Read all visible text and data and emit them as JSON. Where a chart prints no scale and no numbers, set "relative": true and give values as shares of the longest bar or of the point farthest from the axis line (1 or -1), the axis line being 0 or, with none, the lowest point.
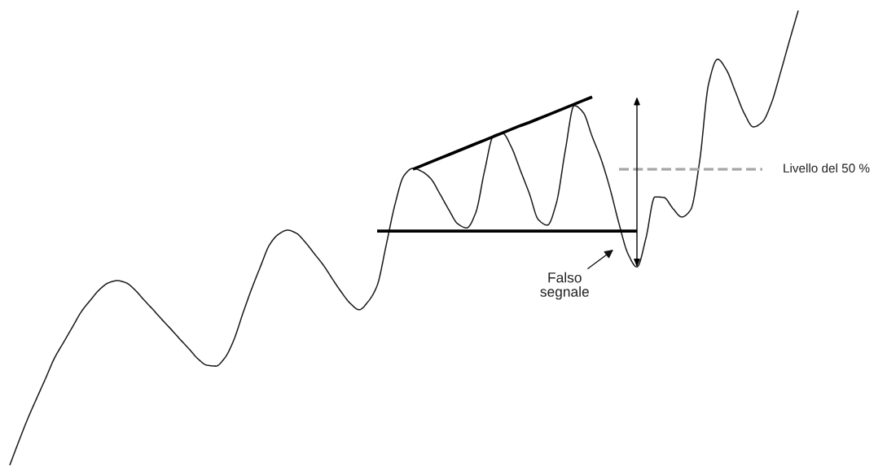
{
  "chart_data": {
    "type": "line",
    "relative": true,
    "tick_labels": false,
    "categories": [
      null,
      null,
      null,
      null,
      null,
      null,
      null,
      null,
      null,
      null,
      null,
      null,
      null,
      null,
      null,
      null,
      null,
      null,
      null,
      null,
      null,
      null,
      null,
      null,
      null,
      null,
      null,
      null,
      null,
      null,
      null,
      null,
      null,
      null,
      null,
      null,
      null,
      null,
      null,
      null,
      null,
      null,
      null,
      null,
      null,
      null,
      null,
      null,
      null,
      null,
      null,
      null,
      null,
      null,
      null,
      null,
      null,
      null,
      null,
      null,
      null,
      null,
      null,
      null,
      null,
      null,
      null,
      null,
      null,
      null,
      null,
      null,
      null,
      null,
      null,
      null,
      null,
      null,
      null,
      null,
      null,
      null,
      null,
      null,
      null,
      null,
      null,
      null,
      null
    ],
    "series": [
      {
        "color": "#1a1a1a",
        "values": [
          0,
          0.052,
          0.102,
          0.147,
          0.191,
          0.236,
          0.27,
          0.304,
          0.338,
          0.363,
          0.386,
          0.401,
          0.406,
          0.401,
          0.385,
          0.363,
          0.342,
          0.32,
          0.299,
          0.277,
          0.256,
          0.234,
          0.22,
          0.218,
          0.236,
          0.275,
          0.333,
          0.388,
          0.438,
          0.485,
          0.508,
          0.517,
          0.51,
          0.49,
          0.465,
          0.44,
          0.41,
          0.381,
          0.356,
          0.342,
          0.36,
          0.395,
          0.483,
          0.574,
          0.637,
          0.653,
          0.646,
          0.63,
          0.597,
          0.562,
          0.531,
          0.522,
          0.555,
          0.648,
          0.725,
          0.73,
          0.699,
          0.648,
          0.597,
          0.54,
          0.528,
          0.576,
          0.692,
          0.791,
          0.776,
          0.723,
          0.673,
          0.608,
          0.531,
          0.465,
          0.436,
          0.499,
          0.59,
          0.589,
          0.565,
          0.546,
          0.562,
          0.669,
          0.839,
          0.893,
          0.869,
          0.821,
          0.773,
          0.744,
          0.755,
          0.796,
          0.862,
          0.932,
          1.0
        ]
      },
      {
        "type": "line",
        "color": "#000000",
        "values": [
          null,
          null,
          null,
          null,
          null,
          null,
          null,
          null,
          null,
          null,
          null,
          null,
          null,
          null,
          null,
          null,
          null,
          null,
          null,
          null,
          null,
          null,
          null,
          null,
          null,
          null,
          null,
          null,
          null,
          null,
          null,
          null,
          null,
          null,
          null,
          null,
          null,
          null,
          null,
          null,
          null,
          0.515,
          0.515,
          0.515,
          0.515,
          0.515,
          0.515,
          0.515,
          0.515,
          0.515,
          0.515,
          0.515,
          0.515,
          0.515,
          0.515,
          0.515,
          0.515,
          0.515,
          0.515,
          0.515,
          0.515,
          0.515,
          0.515,
          0.515,
          0.515,
          0.515,
          0.515,
          0.515,
          0.515,
          0.515,
          0.515,
          null,
          null,
          null,
          null,
          null,
          null,
          null,
          null,
          null,
          null,
          null,
          null,
          null,
          null,
          null,
          null,
          null,
          null
        ]
      },
      {
        "type": "line",
        "color": "#000000",
        "values": [
          null,
          null,
          null,
          null,
          null,
          null,
          null,
          null,
          null,
          null,
          null,
          null,
          null,
          null,
          null,
          null,
          null,
          null,
          null,
          null,
          null,
          null,
          null,
          null,
          null,
          null,
          null,
          null,
          null,
          null,
          null,
          null,
          null,
          null,
          null,
          null,
          null,
          null,
          null,
          null,
          null,
          null,
          null,
          null,
          null,
          0.651,
          0.659,
          0.667,
          0.675,
          0.683,
          0.691,
          0.699,
          0.707,
          0.715,
          0.723,
          0.731,
          0.739,
          0.747,
          0.754,
          0.762,
          0.77,
          0.778,
          0.786,
          0.794,
          0.802,
          0.81,
          null,
          null,
          null,
          null,
          null,
          null,
          null,
          null,
          null,
          null,
          null,
          null,
          null,
          null,
          null,
          null,
          null,
          null,
          null,
          null,
          null,
          null,
          null
        ]
      },
      {
        "type": "line",
        "name": "Livello del 50 %",
        "color": "#a6a6a6",
        "line_style": "dashed",
        "values": [
          null,
          null,
          null,
          null,
          null,
          null,
          null,
          null,
          null,
          null,
          null,
          null,
          null,
          null,
          null,
          null,
          null,
          null,
          null,
          null,
          null,
          null,
          null,
          null,
          null,
          null,
          null,
          null,
          null,
          null,
          null,
          null,
          null,
          null,
          null,
          null,
          null,
          null,
          null,
          null,
          null,
          null,
          null,
          null,
          null,
          null,
          null,
          null,
          null,
          null,
          null,
          null,
          null,
          null,
          null,
          null,
          null,
          null,
          null,
          null,
          null,
          null,
          null,
          null,
          null,
          null,
          null,
          null,
          0.651,
          0.651,
          0.651,
          0.651,
          0.651,
          0.651,
          0.651,
          0.651,
          0.651,
          0.651,
          0.651,
          0.651,
          0.651,
          0.651,
          0.651,
          0.651,
          0.651,
          null,
          null,
          null,
          null
        ]
      }
    ],
    "annotations": [
      "Falso\nsegnale"
    ]
  }
}
